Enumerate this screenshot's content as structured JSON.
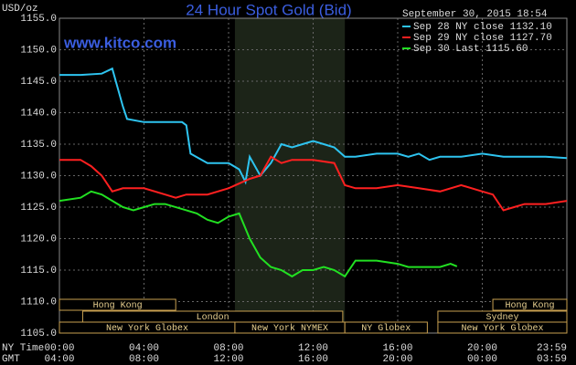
{
  "chart_data": {
    "type": "line",
    "title": "24 Hour Spot Gold (Bid)",
    "source": "www.kitco.com",
    "y_label": "USD/oz",
    "timestamp": "September 30, 2015 18:54",
    "x_label": "NY Time",
    "x2_label": "GMT",
    "xlim": [
      0,
      24
    ],
    "xticks": [
      {
        "value": 0,
        "label": "00:00"
      },
      {
        "value": 4,
        "label": "04:00"
      },
      {
        "value": 8,
        "label": "08:00"
      },
      {
        "value": 12,
        "label": "12:00"
      },
      {
        "value": 16,
        "label": "16:00"
      },
      {
        "value": 20,
        "label": "20:00"
      },
      {
        "value": 24,
        "label": "23:59"
      }
    ],
    "x2ticks": [
      {
        "value": 0,
        "label": "04:00"
      },
      {
        "value": 4,
        "label": "08:00"
      },
      {
        "value": 8,
        "label": "12:00"
      },
      {
        "value": 12,
        "label": "16:00"
      },
      {
        "value": 16,
        "label": "20:00"
      },
      {
        "value": 20,
        "label": "00:00"
      },
      {
        "value": 24,
        "label": "03:59"
      }
    ],
    "ylim": [
      1105,
      1155
    ],
    "yticks": [
      {
        "value": 1105,
        "label": "1105.0"
      },
      {
        "value": 1110,
        "label": "1110.0"
      },
      {
        "value": 1115,
        "label": "1115.0"
      },
      {
        "value": 1120,
        "label": "1120.0"
      },
      {
        "value": 1125,
        "label": "1125.0"
      },
      {
        "value": 1130,
        "label": "1130.0"
      },
      {
        "value": 1135,
        "label": "1135.0"
      },
      {
        "value": 1140,
        "label": "1140.0"
      },
      {
        "value": 1145,
        "label": "1145.0"
      },
      {
        "value": 1150,
        "label": "1150.0"
      },
      {
        "value": 1155,
        "label": "1155.0"
      }
    ],
    "grid": true,
    "shade": [
      8.3,
      13.5
    ],
    "sessions": [
      {
        "label": "Hong Kong",
        "start": 0,
        "end": 5.5,
        "row": 0
      },
      {
        "label": "Hong Kong",
        "start": 20.5,
        "end": 24,
        "row": 0
      },
      {
        "label": "London",
        "start": 1.1,
        "end": 13.4,
        "row": 1
      },
      {
        "label": "Sydney",
        "start": 17.9,
        "end": 24,
        "row": 1
      },
      {
        "label": "New York Globex",
        "start": 0,
        "end": 8.3,
        "row": 2
      },
      {
        "label": "New York NYMEX",
        "start": 8.3,
        "end": 13.5,
        "row": 2
      },
      {
        "label": "NY Globex",
        "start": 13.5,
        "end": 17.4,
        "row": 2
      },
      {
        "label": "New York Globex",
        "start": 17.9,
        "end": 24,
        "row": 2
      }
    ],
    "series": [
      {
        "name": "Sep 28 NY close 1132.10",
        "color": "#2ec4f0",
        "x": [
          0,
          1,
          2,
          2.5,
          3,
          3.2,
          4,
          5,
          5.8,
          6,
          6.2,
          7,
          8,
          8.5,
          8.8,
          9,
          9.5,
          10,
          10.5,
          11,
          11.5,
          12,
          12.5,
          13,
          13.5,
          14,
          15,
          16,
          16.5,
          17,
          17.5,
          18,
          19,
          20,
          21,
          22,
          23,
          24
        ],
        "values": [
          1146,
          1146,
          1146.2,
          1147,
          1141,
          1139,
          1138.5,
          1138.5,
          1138.5,
          1138,
          1133.5,
          1132,
          1132,
          1131,
          1129,
          1133,
          1130,
          1132,
          1135,
          1134.5,
          1135,
          1135.5,
          1135,
          1134.5,
          1133,
          1133,
          1133.5,
          1133.5,
          1133,
          1133.5,
          1132.5,
          1133,
          1133,
          1133.5,
          1133,
          1133,
          1133,
          1132.8
        ]
      },
      {
        "name": "Sep 29 NY close 1127.70",
        "color": "#ff2020",
        "x": [
          0,
          1,
          1.5,
          2,
          2.5,
          3,
          4,
          5,
          5.5,
          6,
          7,
          8,
          9,
          9.5,
          10,
          10.5,
          11,
          12,
          13,
          13.5,
          14,
          15,
          16,
          17,
          18,
          19,
          20,
          20.5,
          21,
          21.5,
          22,
          23,
          24
        ],
        "values": [
          1132.5,
          1132.5,
          1131.5,
          1130,
          1127.5,
          1128,
          1128,
          1127,
          1126.5,
          1127,
          1127,
          1128,
          1129.5,
          1130,
          1133,
          1132,
          1132.5,
          1132.5,
          1132,
          1128.5,
          1128,
          1128,
          1128.5,
          1128,
          1127.5,
          1128.5,
          1127.5,
          1127,
          1124.5,
          1125,
          1125.5,
          1125.5,
          1126
        ]
      },
      {
        "name": "Sep 30 Last 1115.60",
        "color": "#22e022",
        "x": [
          0,
          1,
          1.5,
          2,
          3,
          3.5,
          4,
          4.5,
          5,
          6,
          6.5,
          7,
          7.5,
          8,
          8.5,
          9,
          9.5,
          10,
          10.5,
          11,
          11.5,
          12,
          12.5,
          13,
          13.5,
          14,
          15,
          16,
          16.5,
          17,
          18,
          18.5,
          18.8
        ],
        "values": [
          1126,
          1126.5,
          1127.5,
          1127,
          1125,
          1124.5,
          1125,
          1125.5,
          1125.5,
          1124.5,
          1124,
          1123,
          1122.5,
          1123.5,
          1124,
          1120,
          1117,
          1115.5,
          1115,
          1114,
          1115,
          1115,
          1115.5,
          1115,
          1114,
          1116.5,
          1116.5,
          1116,
          1115.5,
          1115.5,
          1115.5,
          1116,
          1115.6
        ]
      }
    ]
  }
}
